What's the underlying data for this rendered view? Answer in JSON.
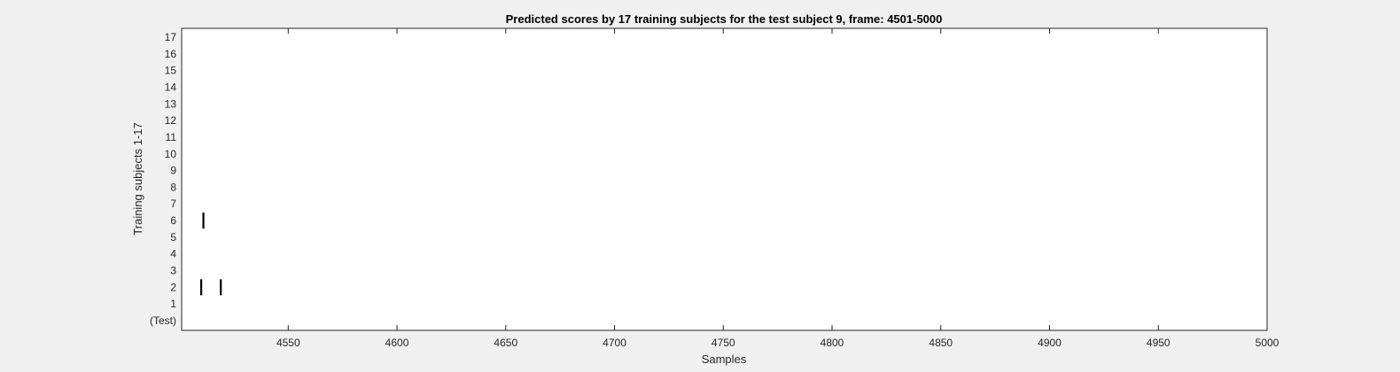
{
  "chart_data": {
    "type": "scatter",
    "title": "Predicted scores by 17 training subjects for the test subject 9, frame: 4501-5000",
    "xlabel": "Samples",
    "ylabel": "Training subjects 1-17",
    "xlim": [
      4501,
      5000
    ],
    "x_ticks": [
      4550,
      4600,
      4650,
      4700,
      4750,
      4800,
      4850,
      4900,
      4950,
      5000
    ],
    "y_tick_labels": [
      "(Test)",
      "1",
      "2",
      "3",
      "4",
      "5",
      "6",
      "7",
      "8",
      "9",
      "10",
      "11",
      "12",
      "13",
      "14",
      "15",
      "16",
      "17"
    ],
    "marker": "vertical-line",
    "marker_color": "#000000",
    "grid": false,
    "points": [
      {
        "x": 4510,
        "y": 2
      },
      {
        "x": 4519,
        "y": 2
      },
      {
        "x": 4511,
        "y": 6
      }
    ]
  }
}
